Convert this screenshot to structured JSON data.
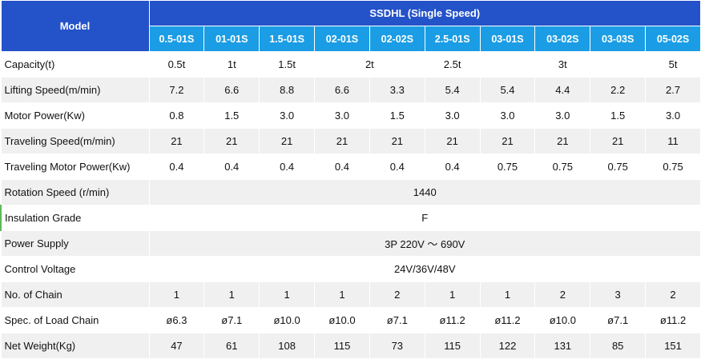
{
  "table": {
    "header": {
      "model": "Model",
      "series": "SSDHL (Single Speed)",
      "models": [
        "0.5-01S",
        "01-01S",
        "1.5-01S",
        "02-01S",
        "02-02S",
        "2.5-01S",
        "03-01S",
        "03-02S",
        "03-03S",
        "05-02S"
      ]
    },
    "rows": [
      {
        "label": "Capacity(t)",
        "cells": [
          "0.5t",
          "1t",
          "1.5t",
          "2t",
          "2.5t",
          "3t",
          "5t"
        ]
      },
      {
        "label": "Lifting Speed(m/min)",
        "cells": [
          "7.2",
          "6.6",
          "8.8",
          "6.6",
          "3.3",
          "5.4",
          "5.4",
          "4.4",
          "2.2",
          "2.7"
        ]
      },
      {
        "label": "Motor Power(Kw)",
        "cells": [
          "0.8",
          "1.5",
          "3.0",
          "3.0",
          "1.5",
          "3.0",
          "3.0",
          "3.0",
          "1.5",
          "3.0"
        ]
      },
      {
        "label": "Traveling Speed(m/min)",
        "cells": [
          "21",
          "21",
          "21",
          "21",
          "21",
          "21",
          "21",
          "21",
          "21",
          "11"
        ]
      },
      {
        "label": "Traveling Motor Power(Kw)",
        "cells": [
          "0.4",
          "0.4",
          "0.4",
          "0.4",
          "0.4",
          "0.4",
          "0.75",
          "0.75",
          "0.75",
          "0.75"
        ]
      },
      {
        "label": "Rotation Speed (r/min)",
        "cells": [
          "1440"
        ]
      },
      {
        "label": "Insulation Grade",
        "cells": [
          "F"
        ]
      },
      {
        "label": "Power Supply",
        "cells": [
          "3P 220V ～ 690V"
        ]
      },
      {
        "label": "Control Voltage",
        "cells": [
          "24V/36V/48V"
        ]
      },
      {
        "label": "No. of Chain",
        "cells": [
          "1",
          "1",
          "1",
          "1",
          "2",
          "1",
          "1",
          "2",
          "3",
          "2"
        ]
      },
      {
        "label": "Spec. of Load Chain",
        "cells": [
          "ø6.3",
          "ø7.1",
          "ø10.0",
          "ø10.0",
          "ø7.1",
          "ø11.2",
          "ø11.2",
          "ø10.0",
          "ø7.1",
          "ø11.2"
        ]
      },
      {
        "label": "Net Weight(Kg)",
        "cells": [
          "47",
          "61",
          "108",
          "115",
          "73",
          "115",
          "122",
          "131",
          "85",
          "151"
        ]
      }
    ]
  }
}
